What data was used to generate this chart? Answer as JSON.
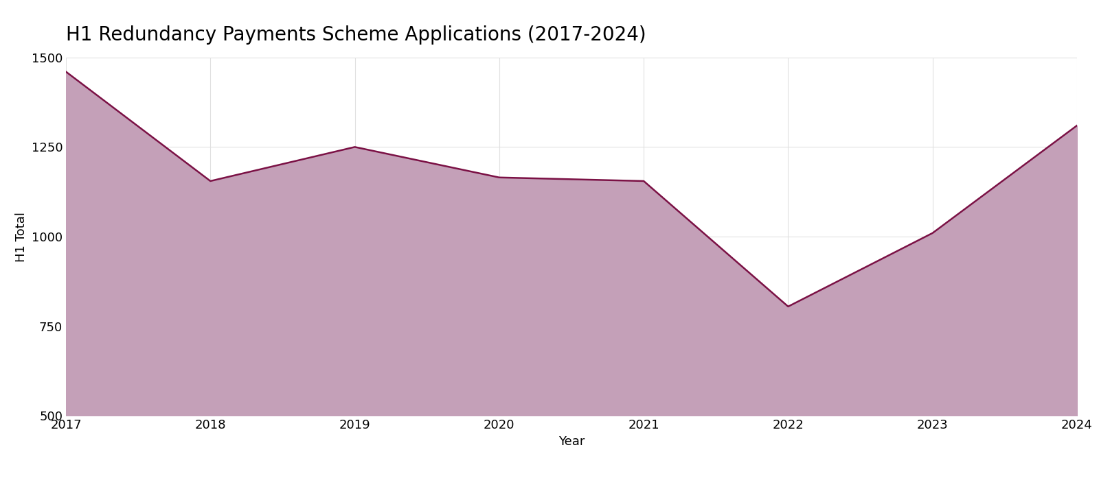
{
  "title": "H1 Redundancy Payments Scheme Applications (2017-2024)",
  "xlabel": "Year",
  "ylabel": "H1 Total",
  "years": [
    2017,
    2018,
    2019,
    2020,
    2021,
    2022,
    2023,
    2024
  ],
  "values": [
    1460,
    1155,
    1250,
    1165,
    1155,
    805,
    1010,
    1310
  ],
  "ylim": [
    500,
    1500
  ],
  "yticks": [
    500,
    750,
    1000,
    1250,
    1500
  ],
  "line_color": "#7B1145",
  "fill_color": "#C4A0B8",
  "fill_alpha": 1.0,
  "background_color": "#ffffff",
  "plot_bg_color": "#ffffff",
  "grid_color": "#e0e0e0",
  "title_fontsize": 20,
  "label_fontsize": 13,
  "tick_fontsize": 13,
  "line_width": 1.8
}
